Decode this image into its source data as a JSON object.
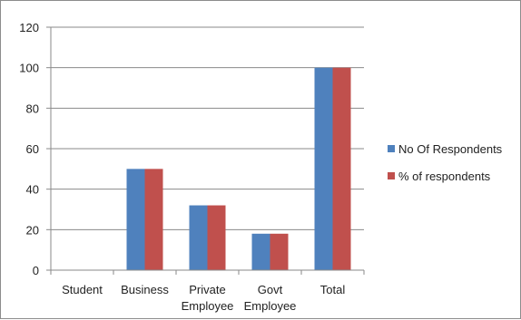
{
  "chart_data": {
    "type": "bar",
    "title": "",
    "xlabel": "",
    "ylabel": "",
    "categories": [
      [
        "Student"
      ],
      [
        "Business"
      ],
      [
        "Private",
        "Employee"
      ],
      [
        "Govt",
        "Employee"
      ],
      [
        "Total"
      ]
    ],
    "series": [
      {
        "name": "No Of Respondents",
        "color": "#4f81bd",
        "values": [
          0,
          50,
          32,
          18,
          100
        ]
      },
      {
        "name": "% of respondents",
        "color": "#c0504d",
        "values": [
          0,
          50,
          32,
          18,
          100
        ]
      }
    ],
    "ylim": [
      0,
      120
    ],
    "yticks": [
      0,
      20,
      40,
      60,
      80,
      100,
      120
    ],
    "grid": true,
    "legend_position": "right"
  }
}
